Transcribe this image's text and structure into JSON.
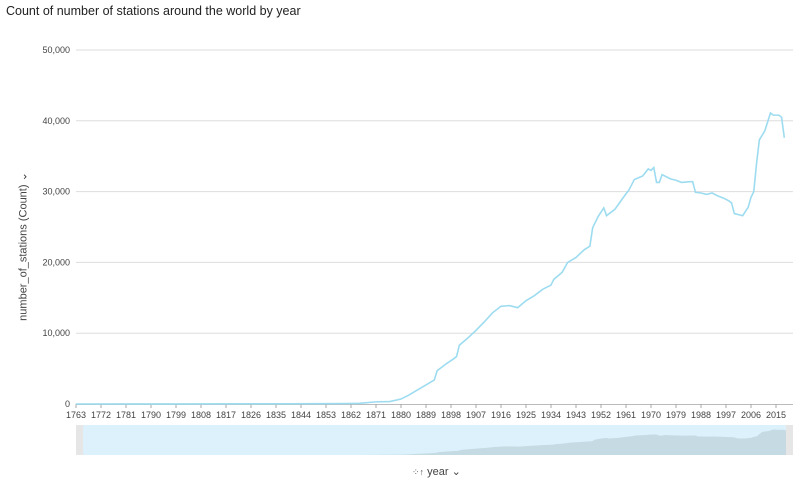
{
  "chart_data": {
    "type": "line",
    "title": "Count of number of stations around the world by year",
    "xlabel": "year",
    "ylabel": "number_of_stations (Count)",
    "xlim": [
      1763,
      2020
    ],
    "ylim": [
      0,
      50000
    ],
    "yticks": [
      "0",
      "10,000",
      "20,000",
      "30,000",
      "40,000",
      "50,000"
    ],
    "ytick_values": [
      0,
      10000,
      20000,
      30000,
      40000,
      50000
    ],
    "xticks": [
      "1763",
      "1772",
      "1781",
      "1790",
      "1799",
      "1808",
      "1817",
      "1826",
      "1835",
      "1844",
      "1853",
      "1862",
      "1871",
      "1880",
      "1889",
      "1898",
      "1907",
      "1916",
      "1925",
      "1934",
      "1943",
      "1952",
      "1961",
      "1970",
      "1979",
      "1988",
      "1997",
      "2006",
      "2015"
    ],
    "grid": true,
    "line_color": "#9ddcf0",
    "series": [
      {
        "name": "number_of_stations",
        "points": [
          [
            1763,
            0
          ],
          [
            1800,
            10
          ],
          [
            1840,
            30
          ],
          [
            1860,
            60
          ],
          [
            1865,
            100
          ],
          [
            1871,
            300
          ],
          [
            1876,
            350
          ],
          [
            1880,
            700
          ],
          [
            1883,
            1300
          ],
          [
            1886,
            2000
          ],
          [
            1889,
            2700
          ],
          [
            1892,
            3400
          ],
          [
            1893,
            4700
          ],
          [
            1896,
            5600
          ],
          [
            1899,
            6400
          ],
          [
            1900,
            6700
          ],
          [
            1901,
            8300
          ],
          [
            1904,
            9300
          ],
          [
            1907,
            10400
          ],
          [
            1910,
            11600
          ],
          [
            1913,
            12900
          ],
          [
            1916,
            13800
          ],
          [
            1919,
            13900
          ],
          [
            1922,
            13600
          ],
          [
            1925,
            14600
          ],
          [
            1928,
            15300
          ],
          [
            1931,
            16200
          ],
          [
            1934,
            16800
          ],
          [
            1935,
            17600
          ],
          [
            1938,
            18600
          ],
          [
            1940,
            20000
          ],
          [
            1943,
            20700
          ],
          [
            1946,
            21800
          ],
          [
            1948,
            22300
          ],
          [
            1949,
            24900
          ],
          [
            1951,
            26500
          ],
          [
            1953,
            27700
          ],
          [
            1954,
            26600
          ],
          [
            1957,
            27500
          ],
          [
            1959,
            28600
          ],
          [
            1961,
            29700
          ],
          [
            1962,
            30200
          ],
          [
            1964,
            31700
          ],
          [
            1967,
            32200
          ],
          [
            1969,
            33200
          ],
          [
            1970,
            33000
          ],
          [
            1971,
            33400
          ],
          [
            1972,
            31300
          ],
          [
            1973,
            31300
          ],
          [
            1974,
            32400
          ],
          [
            1977,
            31800
          ],
          [
            1979,
            31600
          ],
          [
            1981,
            31300
          ],
          [
            1984,
            31400
          ],
          [
            1985,
            31400
          ],
          [
            1986,
            29900
          ],
          [
            1988,
            29800
          ],
          [
            1990,
            29600
          ],
          [
            1992,
            29800
          ],
          [
            1994,
            29400
          ],
          [
            1996,
            29100
          ],
          [
            1998,
            28700
          ],
          [
            1999,
            28400
          ],
          [
            2000,
            26900
          ],
          [
            2002,
            26700
          ],
          [
            2003,
            26600
          ],
          [
            2005,
            27800
          ],
          [
            2006,
            29200
          ],
          [
            2007,
            30000
          ],
          [
            2008,
            34000
          ],
          [
            2009,
            37300
          ],
          [
            2011,
            38600
          ],
          [
            2013,
            41100
          ],
          [
            2014,
            40800
          ],
          [
            2016,
            40800
          ],
          [
            2017,
            40500
          ],
          [
            2018,
            37600
          ]
        ]
      }
    ]
  }
}
